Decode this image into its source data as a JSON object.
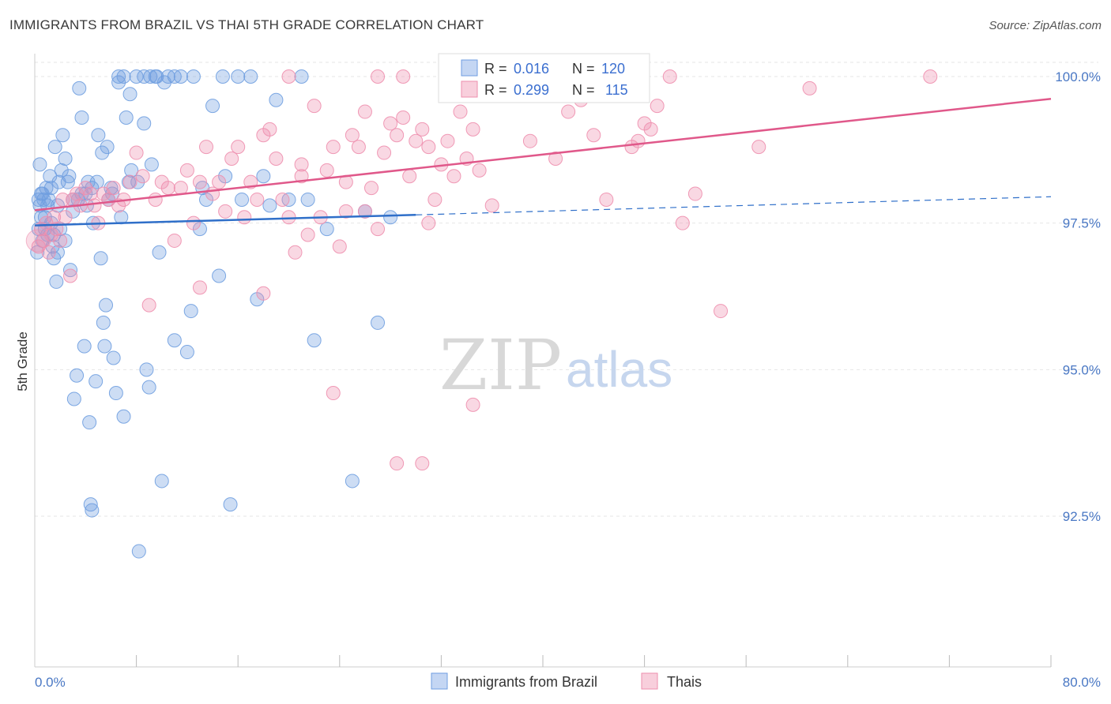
{
  "title": "IMMIGRANTS FROM BRAZIL VS THAI 5TH GRADE CORRELATION CHART",
  "source": "Source: ZipAtlas.com",
  "watermark": {
    "zip": "ZIP",
    "atlas": "atlas"
  },
  "colors": {
    "blue": "#6f9ee0",
    "blue_line": "#2f6fc9",
    "pink": "#ee8fae",
    "pink_line": "#e0588a",
    "axis_text": "#4a78c4"
  },
  "legend_box": {
    "rows": [
      {
        "r_label": "R =",
        "r_value": "0.016",
        "n_label": "N =",
        "n_value": "120"
      },
      {
        "r_label": "R =",
        "r_value": "0.299",
        "n_label": "N =",
        "n_value": "115"
      }
    ]
  },
  "chart_data": {
    "type": "scatter",
    "title": "IMMIGRANTS FROM BRAZIL VS THAI 5TH GRADE CORRELATION CHART",
    "xlabel": "",
    "ylabel": "5th Grade",
    "xlim": [
      0,
      80
    ],
    "ylim": [
      90.0,
      100.2
    ],
    "x_tick_labels": [
      "0.0%",
      "80.0%"
    ],
    "y_ticks": [
      92.5,
      95.0,
      97.5,
      100.0
    ],
    "y_tick_labels": [
      "92.5%",
      "95.0%",
      "97.5%",
      "100.0%"
    ],
    "legend_position": "bottom-center",
    "series": [
      {
        "name": "Immigrants from Brazil",
        "color": "#6f9ee0",
        "R": 0.016,
        "N": 120,
        "trend": {
          "x0": 0,
          "y0": 97.46,
          "x1": 30,
          "y1": 97.64,
          "dash_x1": 80,
          "dash_y1": 97.95
        },
        "points": [
          [
            0.2,
            97.0
          ],
          [
            0.3,
            97.4
          ],
          [
            0.4,
            97.8
          ],
          [
            0.5,
            98.0
          ],
          [
            0.6,
            97.2
          ],
          [
            0.7,
            97.9
          ],
          [
            0.8,
            97.6
          ],
          [
            0.9,
            98.1
          ],
          [
            1.0,
            97.3
          ],
          [
            1.1,
            97.9
          ],
          [
            1.2,
            98.3
          ],
          [
            1.3,
            97.5
          ],
          [
            1.4,
            97.1
          ],
          [
            1.5,
            96.9
          ],
          [
            1.6,
            98.8
          ],
          [
            1.7,
            96.5
          ],
          [
            1.8,
            97.8
          ],
          [
            1.9,
            98.2
          ],
          [
            2.0,
            97.4
          ],
          [
            2.2,
            99.0
          ],
          [
            2.4,
            97.2
          ],
          [
            2.6,
            98.2
          ],
          [
            2.8,
            96.7
          ],
          [
            3.0,
            97.9
          ],
          [
            3.1,
            94.5
          ],
          [
            3.3,
            94.9
          ],
          [
            3.5,
            99.8
          ],
          [
            3.7,
            99.3
          ],
          [
            3.9,
            95.4
          ],
          [
            4.0,
            98.0
          ],
          [
            4.2,
            98.2
          ],
          [
            4.3,
            94.1
          ],
          [
            4.4,
            92.7
          ],
          [
            4.5,
            92.6
          ],
          [
            4.6,
            97.5
          ],
          [
            4.8,
            94.8
          ],
          [
            5.0,
            99.0
          ],
          [
            5.2,
            96.9
          ],
          [
            5.4,
            95.8
          ],
          [
            5.5,
            95.4
          ],
          [
            5.6,
            96.1
          ],
          [
            5.8,
            97.9
          ],
          [
            6.0,
            98.1
          ],
          [
            6.2,
            95.2
          ],
          [
            6.4,
            94.6
          ],
          [
            6.6,
            99.9
          ],
          [
            6.8,
            97.6
          ],
          [
            7.0,
            94.2
          ],
          [
            7.2,
            99.3
          ],
          [
            7.4,
            98.2
          ],
          [
            7.6,
            98.4
          ],
          [
            8.0,
            100.0
          ],
          [
            8.2,
            91.9
          ],
          [
            8.6,
            99.2
          ],
          [
            8.8,
            95.0
          ],
          [
            9.0,
            94.7
          ],
          [
            9.2,
            98.5
          ],
          [
            9.5,
            100.0
          ],
          [
            9.8,
            97.0
          ],
          [
            10.0,
            93.1
          ],
          [
            10.5,
            100.0
          ],
          [
            11.0,
            95.5
          ],
          [
            11.5,
            100.0
          ],
          [
            12.0,
            95.3
          ],
          [
            12.3,
            96.0
          ],
          [
            13.0,
            97.4
          ],
          [
            13.5,
            97.9
          ],
          [
            14.0,
            99.5
          ],
          [
            14.5,
            96.6
          ],
          [
            15.0,
            98.3
          ],
          [
            15.4,
            92.7
          ],
          [
            16.0,
            100.0
          ],
          [
            17.0,
            100.0
          ],
          [
            17.5,
            96.2
          ],
          [
            18.0,
            98.3
          ],
          [
            19.0,
            99.6
          ],
          [
            20.0,
            97.9
          ],
          [
            21.0,
            100.0
          ],
          [
            22.0,
            95.5
          ],
          [
            25.0,
            93.1
          ],
          [
            27.0,
            95.8
          ],
          [
            0.3,
            97.9
          ],
          [
            0.5,
            97.6
          ],
          [
            0.6,
            98.0
          ],
          [
            0.8,
            97.4
          ],
          [
            1.0,
            97.8
          ],
          [
            1.3,
            98.1
          ],
          [
            1.5,
            97.3
          ],
          [
            1.8,
            97.0
          ],
          [
            2.1,
            98.4
          ],
          [
            2.4,
            98.6
          ],
          [
            2.7,
            98.3
          ],
          [
            3.0,
            97.7
          ],
          [
            3.4,
            97.9
          ],
          [
            3.7,
            98.0
          ],
          [
            4.1,
            97.8
          ],
          [
            4.5,
            98.1
          ],
          [
            4.9,
            98.2
          ],
          [
            5.3,
            98.7
          ],
          [
            5.7,
            98.8
          ],
          [
            6.1,
            98.0
          ],
          [
            6.6,
            100.0
          ],
          [
            7.0,
            100.0
          ],
          [
            7.5,
            99.7
          ],
          [
            8.1,
            98.2
          ],
          [
            8.6,
            100.0
          ],
          [
            9.1,
            100.0
          ],
          [
            9.6,
            100.0
          ],
          [
            10.2,
            99.9
          ],
          [
            11.0,
            100.0
          ],
          [
            12.5,
            100.0
          ],
          [
            13.2,
            98.1
          ],
          [
            14.8,
            100.0
          ],
          [
            16.3,
            97.9
          ],
          [
            18.5,
            97.8
          ],
          [
            21.5,
            97.9
          ],
          [
            23.0,
            97.4
          ],
          [
            26.0,
            97.7
          ],
          [
            28.0,
            97.6
          ],
          [
            33.5,
            100.0
          ],
          [
            0.4,
            98.5
          ]
        ]
      },
      {
        "name": "Thais",
        "color": "#ee8fae",
        "R": 0.299,
        "N": 115,
        "trend": {
          "x0": 0,
          "y0": 97.72,
          "x1": 80,
          "y1": 99.62
        },
        "points": [
          [
            0.3,
            97.1
          ],
          [
            0.5,
            97.4
          ],
          [
            0.7,
            97.2
          ],
          [
            0.9,
            97.5
          ],
          [
            1.1,
            97.0
          ],
          [
            1.3,
            97.3
          ],
          [
            1.5,
            97.6
          ],
          [
            1.7,
            97.4
          ],
          [
            2.0,
            97.2
          ],
          [
            2.2,
            97.9
          ],
          [
            2.4,
            97.6
          ],
          [
            2.8,
            96.6
          ],
          [
            3.0,
            97.9
          ],
          [
            3.3,
            98.0
          ],
          [
            3.6,
            97.8
          ],
          [
            4.0,
            98.1
          ],
          [
            4.4,
            98.0
          ],
          [
            4.7,
            97.8
          ],
          [
            5.0,
            97.5
          ],
          [
            5.4,
            98.0
          ],
          [
            5.8,
            97.9
          ],
          [
            6.2,
            98.1
          ],
          [
            6.6,
            97.8
          ],
          [
            7.0,
            97.9
          ],
          [
            7.5,
            98.2
          ],
          [
            8.0,
            98.7
          ],
          [
            8.5,
            98.3
          ],
          [
            9.0,
            96.1
          ],
          [
            9.5,
            97.9
          ],
          [
            10.0,
            98.2
          ],
          [
            10.5,
            98.1
          ],
          [
            11.0,
            97.2
          ],
          [
            11.5,
            98.1
          ],
          [
            12.0,
            98.4
          ],
          [
            12.5,
            97.5
          ],
          [
            13.0,
            98.2
          ],
          [
            13.5,
            98.8
          ],
          [
            14.0,
            98.0
          ],
          [
            14.5,
            98.2
          ],
          [
            15.0,
            97.7
          ],
          [
            15.5,
            98.6
          ],
          [
            16.0,
            98.8
          ],
          [
            16.5,
            97.6
          ],
          [
            17.0,
            98.2
          ],
          [
            17.5,
            97.9
          ],
          [
            18.0,
            96.3
          ],
          [
            18.5,
            99.1
          ],
          [
            19.0,
            98.6
          ],
          [
            19.5,
            97.9
          ],
          [
            20.0,
            97.6
          ],
          [
            20.5,
            97.0
          ],
          [
            21.0,
            98.3
          ],
          [
            21.5,
            97.3
          ],
          [
            22.0,
            99.5
          ],
          [
            22.5,
            97.6
          ],
          [
            23.0,
            98.4
          ],
          [
            23.5,
            98.8
          ],
          [
            24.0,
            97.1
          ],
          [
            24.5,
            97.7
          ],
          [
            25.0,
            99.0
          ],
          [
            25.5,
            98.8
          ],
          [
            26.0,
            97.7
          ],
          [
            26.5,
            98.1
          ],
          [
            27.0,
            97.4
          ],
          [
            27.5,
            98.7
          ],
          [
            28.0,
            99.2
          ],
          [
            28.5,
            99.0
          ],
          [
            29.0,
            99.3
          ],
          [
            29.5,
            98.3
          ],
          [
            30.0,
            98.9
          ],
          [
            30.5,
            99.1
          ],
          [
            31.0,
            98.8
          ],
          [
            31.5,
            97.9
          ],
          [
            32.0,
            98.5
          ],
          [
            32.5,
            98.9
          ],
          [
            33.0,
            98.3
          ],
          [
            33.5,
            99.4
          ],
          [
            34.0,
            98.6
          ],
          [
            34.5,
            99.1
          ],
          [
            35.0,
            98.4
          ],
          [
            36.0,
            97.8
          ],
          [
            37.0,
            99.8
          ],
          [
            38.0,
            100.0
          ],
          [
            39.0,
            98.9
          ],
          [
            40.0,
            100.0
          ],
          [
            41.0,
            98.6
          ],
          [
            42.0,
            99.4
          ],
          [
            43.0,
            99.6
          ],
          [
            44.0,
            99.0
          ],
          [
            45.0,
            97.9
          ],
          [
            46.0,
            100.0
          ],
          [
            47.0,
            98.8
          ],
          [
            47.5,
            98.9
          ],
          [
            48.5,
            99.1
          ],
          [
            49.0,
            99.5
          ],
          [
            50.0,
            100.0
          ],
          [
            52.0,
            98.0
          ],
          [
            54.0,
            96.0
          ],
          [
            57.0,
            98.8
          ],
          [
            61.0,
            99.8
          ],
          [
            70.5,
            100.0
          ],
          [
            23.5,
            94.6
          ],
          [
            28.5,
            93.4
          ],
          [
            30.5,
            93.4
          ],
          [
            34.5,
            94.4
          ],
          [
            24.5,
            98.2
          ],
          [
            27.0,
            100.0
          ],
          [
            29.0,
            100.0
          ],
          [
            31.0,
            97.5
          ],
          [
            26.0,
            99.4
          ],
          [
            20.0,
            100.0
          ],
          [
            18.0,
            99.0
          ],
          [
            13.0,
            96.4
          ],
          [
            21.0,
            98.5
          ],
          [
            48.0,
            99.2
          ],
          [
            51.0,
            97.5
          ]
        ]
      }
    ]
  },
  "legend": {
    "items": [
      {
        "label": "Immigrants from Brazil"
      },
      {
        "label": "Thais"
      }
    ]
  }
}
